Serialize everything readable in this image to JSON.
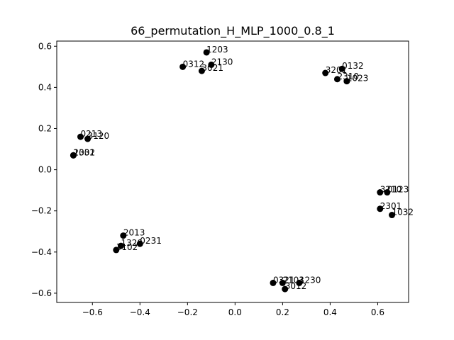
{
  "chart_data": {
    "type": "scatter",
    "title": "66_permutation_H_MLP_1000_0.8_1",
    "xlabel": "",
    "ylabel": "",
    "xlim": [
      -0.75,
      0.73
    ],
    "ylim": [
      -0.645,
      0.625
    ],
    "xticks": [
      -0.6,
      -0.4,
      -0.2,
      0.0,
      0.2,
      0.4,
      0.6
    ],
    "xtick_labels": [
      "−0.6",
      "−0.4",
      "−0.2",
      "0.0",
      "0.2",
      "0.4",
      "0.6"
    ],
    "yticks": [
      -0.6,
      -0.4,
      -0.2,
      0.0,
      0.2,
      0.4,
      0.6
    ],
    "ytick_labels": [
      "−0.6",
      "−0.4",
      "−0.2",
      "0.0",
      "0.2",
      "0.4",
      "0.6"
    ],
    "grid": false,
    "marker_color": "#000000",
    "points": [
      {
        "label": "1203",
        "x": -0.12,
        "y": 0.57
      },
      {
        "label": "2130",
        "x": -0.1,
        "y": 0.51
      },
      {
        "label": "0312",
        "x": -0.22,
        "y": 0.5
      },
      {
        "label": "3021",
        "x": -0.14,
        "y": 0.48
      },
      {
        "label": "3201",
        "x": 0.38,
        "y": 0.47
      },
      {
        "label": "0132",
        "x": 0.45,
        "y": 0.49
      },
      {
        "label": "2310",
        "x": 0.43,
        "y": 0.44
      },
      {
        "label": "1023",
        "x": 0.47,
        "y": 0.43
      },
      {
        "label": "0213",
        "x": -0.65,
        "y": 0.16
      },
      {
        "label": "3120",
        "x": -0.62,
        "y": 0.15
      },
      {
        "label": "2031",
        "x": -0.68,
        "y": 0.07
      },
      {
        "label": "1302",
        "x": -0.68,
        "y": 0.07
      },
      {
        "label": "3210",
        "x": 0.61,
        "y": -0.11
      },
      {
        "label": "0123",
        "x": 0.64,
        "y": -0.11
      },
      {
        "label": "2301",
        "x": 0.61,
        "y": -0.19
      },
      {
        "label": "1032",
        "x": 0.66,
        "y": -0.22
      },
      {
        "label": "2013",
        "x": -0.47,
        "y": -0.32
      },
      {
        "label": "1320",
        "x": -0.48,
        "y": -0.37
      },
      {
        "label": "0231",
        "x": -0.4,
        "y": -0.36
      },
      {
        "label": "3102",
        "x": -0.5,
        "y": -0.39
      },
      {
        "label": "0321",
        "x": 0.16,
        "y": -0.55
      },
      {
        "label": "2103",
        "x": 0.2,
        "y": -0.55
      },
      {
        "label": "1230",
        "x": 0.27,
        "y": -0.55
      },
      {
        "label": "3012",
        "x": 0.21,
        "y": -0.58
      }
    ]
  }
}
